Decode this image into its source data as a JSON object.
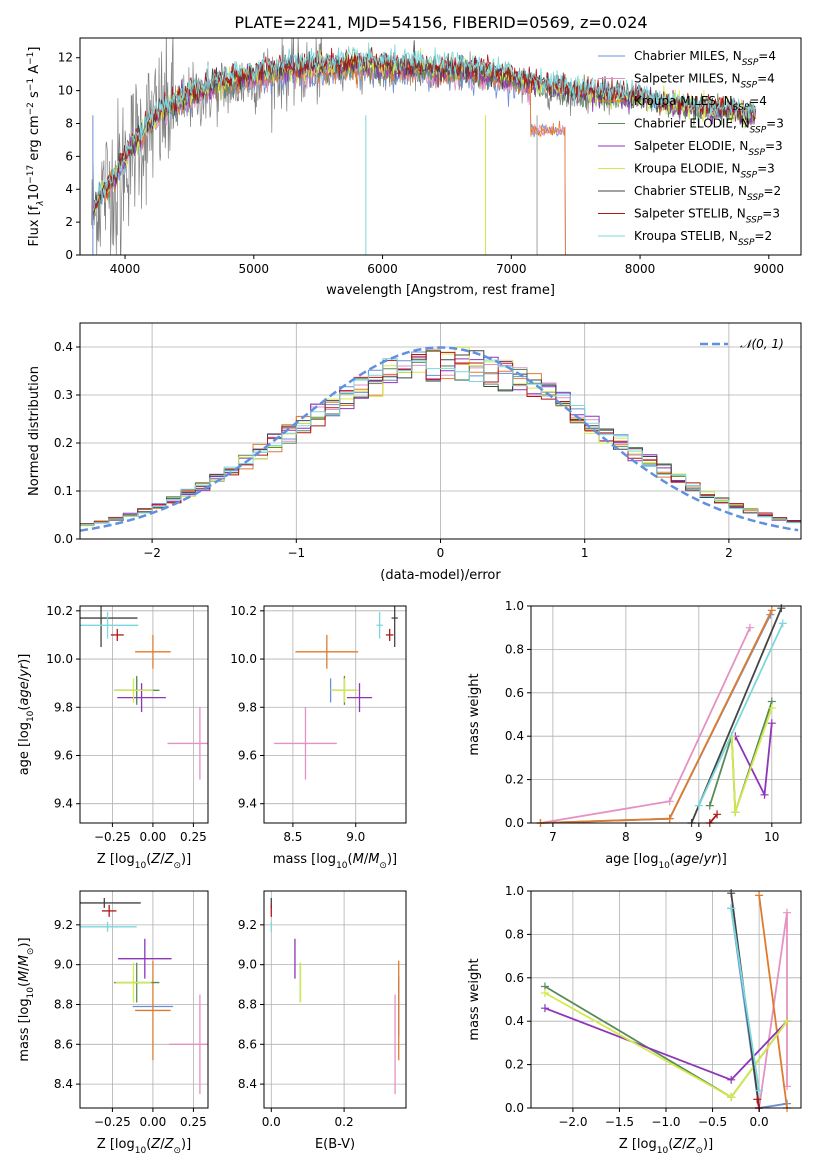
{
  "figure_title": "PLATE=2241, MJD=54156, FIBERID=0569, z=0.024",
  "series_colors": {
    "Chabrier MILES": "#6b8fd6",
    "Salpeter MILES": "#e592c2",
    "Kroupa MILES": "#e07b2c",
    "Chabrier ELODIE": "#5a8a5a",
    "Salpeter ELODIE": "#8e35b8",
    "Kroupa ELODIE": "#d4e94a",
    "Chabrier STELIB": "#444444",
    "Salpeter STELIB": "#b01818",
    "Kroupa STELIB": "#7ad8dc",
    "data": "#808080",
    "normal_curve": "#6090e0"
  },
  "chart_data": [
    {
      "id": "spectrum",
      "type": "line",
      "title": "PLATE=2241, MJD=54156, FIBERID=0569, z=0.024",
      "xlabel": "wavelength [Angstrom, rest frame]",
      "ylabel": "Flux [f_λ 10^-17 erg cm^-2 s^-1 A^-1]",
      "xlim": [
        3650,
        9250
      ],
      "ylim": [
        0,
        13.2
      ],
      "xticks": [
        4000,
        5000,
        6000,
        7000,
        8000,
        9000
      ],
      "yticks": [
        0,
        2,
        4,
        6,
        8,
        10,
        12
      ],
      "grid": false,
      "legend_position": "top-right",
      "legend": [
        "Chabrier MILES, N_SSP=4",
        "Salpeter MILES, N_SSP=4",
        "Kroupa MILES, N_SSP=4",
        "Chabrier ELODIE, N_SSP=3",
        "Salpeter ELODIE, N_SSP=3",
        "Kroupa ELODIE, N_SSP=3",
        "Chabrier STELIB, N_SSP=2",
        "Salpeter STELIB, N_SSP=3",
        "Kroupa STELIB, N_SSP=2"
      ],
      "continuum": {
        "x": [
          3750,
          3800,
          3900,
          4000,
          4100,
          4200,
          4300,
          4500,
          4800,
          5000,
          5200,
          5500,
          5800,
          6000,
          6300,
          6500,
          6700,
          6900,
          7000,
          7100,
          7200,
          7400,
          7600,
          7800,
          8000,
          8200,
          8400,
          8600,
          8800,
          9000,
          9200
        ],
        "y": [
          2.5,
          3.5,
          4.5,
          5.8,
          7.0,
          7.9,
          8.6,
          9.5,
          10.3,
          10.7,
          11.0,
          11.2,
          11.3,
          11.2,
          11.1,
          11.0,
          10.9,
          10.7,
          10.5,
          10.4,
          10.1,
          9.8,
          9.6,
          9.5,
          9.3,
          9.0,
          8.7,
          8.6,
          8.4,
          8.2,
          8.1
        ]
      },
      "miles_cut_above_A": 7150,
      "miles_red_level": 7.6,
      "miles_cut_A": 7420
    },
    {
      "id": "residuals",
      "type": "bar",
      "xlabel": "(data-model)/error",
      "ylabel": "Normed distribution",
      "xlim": [
        -2.5,
        2.5
      ],
      "ylim": [
        0,
        0.45
      ],
      "xticks": [
        -2,
        -1,
        0,
        1,
        2
      ],
      "yticks": [
        0,
        0.1,
        0.2,
        0.3,
        0.4
      ],
      "grid": true,
      "legend_position": "top-right",
      "legend": [
        "𝒩(0, 1)"
      ],
      "bin_width": 0.1,
      "x_range": [
        -2.5,
        2.5
      ],
      "normal": {
        "mu": 0,
        "sigma": 1
      }
    },
    {
      "id": "age_vs_Z",
      "type": "scatter",
      "xlabel": "Z [log10(Z/Z⊙)]",
      "ylabel": "age [log10(age/yr)]",
      "xlim": [
        -0.45,
        0.34
      ],
      "ylim": [
        9.32,
        10.22
      ],
      "xticks": [
        -0.25,
        0.0,
        0.25
      ],
      "yticks": [
        9.4,
        9.6,
        9.8,
        10.0,
        10.2
      ],
      "grid": true,
      "points": [
        {
          "series": "Chabrier MILES",
          "x": -0.1,
          "y": 9.87,
          "xerr": 0.28,
          "yerr": 0.1
        },
        {
          "series": "Salpeter MILES",
          "x": 0.29,
          "y": 9.65,
          "xerr": 0.4,
          "yerr": 0.3
        },
        {
          "series": "Kroupa MILES",
          "x": 0.0,
          "y": 10.03,
          "xerr": 0.22,
          "yerr": 0.14
        },
        {
          "series": "Chabrier ELODIE",
          "x": -0.1,
          "y": 9.87,
          "xerr": 0.28,
          "yerr": 0.12
        },
        {
          "series": "Salpeter ELODIE",
          "x": -0.07,
          "y": 9.84,
          "xerr": 0.3,
          "yerr": 0.12
        },
        {
          "series": "Kroupa ELODIE",
          "x": -0.12,
          "y": 9.87,
          "xerr": 0.24,
          "yerr": 0.1
        },
        {
          "series": "Chabrier STELIB",
          "x": -0.32,
          "y": 10.17,
          "xerr": 0.45,
          "yerr": 0.24
        },
        {
          "series": "Salpeter STELIB",
          "x": -0.22,
          "y": 10.1,
          "xerr": 0.08,
          "yerr": 0.05
        },
        {
          "series": "Kroupa STELIB",
          "x": -0.28,
          "y": 10.14,
          "xerr": 0.38,
          "yerr": 0.11
        }
      ]
    },
    {
      "id": "age_vs_mass",
      "type": "scatter",
      "xlabel": "mass [log10(M/M⊙)]",
      "ylabel": "",
      "xlim": [
        8.27,
        9.4
      ],
      "ylim": [
        9.32,
        10.22
      ],
      "xticks": [
        8.5,
        9.0
      ],
      "yticks": [
        9.4,
        9.6,
        9.8,
        10.0,
        10.2
      ],
      "grid": true,
      "points": [
        {
          "series": "Chabrier MILES",
          "x": 8.8,
          "y": 9.87,
          "xerr": 0.0,
          "yerr": 0.1
        },
        {
          "series": "Salpeter MILES",
          "x": 8.6,
          "y": 9.65,
          "xerr": 0.5,
          "yerr": 0.3
        },
        {
          "series": "Kroupa MILES",
          "x": 8.77,
          "y": 10.03,
          "xerr": 0.5,
          "yerr": 0.14
        },
        {
          "series": "Chabrier ELODIE",
          "x": 8.91,
          "y": 9.87,
          "xerr": 0.2,
          "yerr": 0.12
        },
        {
          "series": "Salpeter ELODIE",
          "x": 9.03,
          "y": 9.84,
          "xerr": 0.2,
          "yerr": 0.12
        },
        {
          "series": "Kroupa ELODIE",
          "x": 8.91,
          "y": 9.87,
          "xerr": 0.22,
          "yerr": 0.1
        },
        {
          "series": "Chabrier STELIB",
          "x": 9.31,
          "y": 10.17,
          "xerr": 0.05,
          "yerr": 0.24
        },
        {
          "series": "Salpeter STELIB",
          "x": 9.27,
          "y": 10.1,
          "xerr": 0.06,
          "yerr": 0.05
        },
        {
          "series": "Kroupa STELIB",
          "x": 9.19,
          "y": 10.14,
          "xerr": 0.05,
          "yerr": 0.11
        }
      ]
    },
    {
      "id": "weight_vs_age",
      "type": "line",
      "xlabel": "age [log10(age/yr)]",
      "ylabel": "mass weight",
      "xlim": [
        6.7,
        10.4
      ],
      "ylim": [
        0,
        1
      ],
      "xticks": [
        7,
        8,
        9,
        10
      ],
      "yticks": [
        0.0,
        0.2,
        0.4,
        0.6,
        0.8,
        1.0
      ],
      "grid": true,
      "series": [
        {
          "name": "Chabrier MILES",
          "x": [
            6.83,
            8.6,
            9.98
          ],
          "y": [
            0.0,
            0.02,
            0.96
          ]
        },
        {
          "name": "Salpeter MILES",
          "x": [
            6.83,
            8.6,
            9.7
          ],
          "y": [
            0.0,
            0.1,
            0.9
          ]
        },
        {
          "name": "Kroupa MILES",
          "x": [
            6.83,
            8.6,
            10.0
          ],
          "y": [
            0.0,
            0.02,
            0.98
          ]
        },
        {
          "name": "Chabrier ELODIE",
          "x": [
            9.15,
            9.45,
            9.5,
            10.0
          ],
          "y": [
            0.08,
            0.4,
            0.05,
            0.56
          ]
        },
        {
          "name": "Salpeter ELODIE",
          "x": [
            9.5,
            9.9,
            10.0
          ],
          "y": [
            0.4,
            0.13,
            0.46
          ]
        },
        {
          "name": "Kroupa ELODIE",
          "x": [
            9.45,
            9.5,
            10.0
          ],
          "y": [
            0.4,
            0.05,
            0.53
          ]
        },
        {
          "name": "Chabrier STELIB",
          "x": [
            8.9,
            10.13
          ],
          "y": [
            0.0,
            0.99
          ]
        },
        {
          "name": "Salpeter STELIB",
          "x": [
            9.15,
            9.25
          ],
          "y": [
            0.0,
            0.04
          ]
        },
        {
          "name": "Kroupa STELIB",
          "x": [
            9.0,
            10.15
          ],
          "y": [
            0.08,
            0.92
          ]
        }
      ]
    },
    {
      "id": "mass_vs_Z",
      "type": "scatter",
      "xlabel": "Z [log10(Z/Z⊙)]",
      "ylabel": "mass [log10(M/M⊙)]",
      "xlim": [
        -0.45,
        0.34
      ],
      "ylim": [
        8.28,
        9.37
      ],
      "xticks": [
        -0.25,
        0.0,
        0.25
      ],
      "yticks": [
        8.4,
        8.6,
        8.8,
        9.0,
        9.2
      ],
      "grid": true,
      "points": [
        {
          "series": "Chabrier MILES",
          "x": 0.0,
          "y": 8.79,
          "xerr": 0.25,
          "yerr": 0.0
        },
        {
          "series": "Salpeter MILES",
          "x": 0.29,
          "y": 8.6,
          "xerr": 0.38,
          "yerr": 0.5
        },
        {
          "series": "Kroupa MILES",
          "x": 0.0,
          "y": 8.77,
          "xerr": 0.22,
          "yerr": 0.5
        },
        {
          "series": "Chabrier ELODIE",
          "x": -0.1,
          "y": 8.91,
          "xerr": 0.28,
          "yerr": 0.2
        },
        {
          "series": "Salpeter ELODIE",
          "x": -0.05,
          "y": 9.03,
          "xerr": 0.33,
          "yerr": 0.2
        },
        {
          "series": "Kroupa ELODIE",
          "x": -0.12,
          "y": 8.91,
          "xerr": 0.22,
          "yerr": 0.2
        },
        {
          "series": "Chabrier STELIB",
          "x": -0.3,
          "y": 9.31,
          "xerr": 0.45,
          "yerr": 0.05
        },
        {
          "series": "Salpeter STELIB",
          "x": -0.27,
          "y": 9.27,
          "xerr": 0.09,
          "yerr": 0.06
        },
        {
          "series": "Kroupa STELIB",
          "x": -0.28,
          "y": 9.19,
          "xerr": 0.36,
          "yerr": 0.05
        }
      ]
    },
    {
      "id": "mass_vs_EBV",
      "type": "scatter",
      "xlabel": "E(B-V)",
      "ylabel": "",
      "xlim": [
        -0.02,
        0.37
      ],
      "ylim": [
        8.28,
        9.37
      ],
      "xticks": [
        0.0,
        0.2
      ],
      "yticks": [
        8.4,
        8.6,
        8.8,
        9.0,
        9.2
      ],
      "grid": true,
      "points": [
        {
          "series": "Chabrier MILES",
          "x": 0.35,
          "y": 8.79,
          "xerr": 0.0,
          "yerr": 0.3
        },
        {
          "series": "Salpeter MILES",
          "x": 0.34,
          "y": 8.6,
          "xerr": 0.0,
          "yerr": 0.5
        },
        {
          "series": "Kroupa MILES",
          "x": 0.35,
          "y": 8.77,
          "xerr": 0.0,
          "yerr": 0.5
        },
        {
          "series": "Chabrier ELODIE",
          "x": 0.08,
          "y": 8.91,
          "xerr": 0.0,
          "yerr": 0.2
        },
        {
          "series": "Salpeter ELODIE",
          "x": 0.065,
          "y": 9.03,
          "xerr": 0.0,
          "yerr": 0.2
        },
        {
          "series": "Kroupa ELODIE",
          "x": 0.08,
          "y": 8.91,
          "xerr": 0.0,
          "yerr": 0.2
        },
        {
          "series": "Chabrier STELIB",
          "x": 0.0,
          "y": 9.31,
          "xerr": 0.0,
          "yerr": 0.05
        },
        {
          "series": "Salpeter STELIB",
          "x": 0.0,
          "y": 9.27,
          "xerr": 0.0,
          "yerr": 0.06
        },
        {
          "series": "Kroupa STELIB",
          "x": 0.0,
          "y": 9.19,
          "xerr": 0.0,
          "yerr": 0.05
        }
      ]
    },
    {
      "id": "weight_vs_Z",
      "type": "line",
      "xlabel": "Z [log10(Z/Z⊙)]",
      "ylabel": "mass weight",
      "xlim": [
        -2.45,
        0.45
      ],
      "ylim": [
        0,
        1
      ],
      "xticks": [
        -2.0,
        -1.5,
        -1.0,
        -0.5,
        0.0
      ],
      "yticks": [
        0.0,
        0.2,
        0.4,
        0.6,
        0.8,
        1.0
      ],
      "grid": true,
      "series": [
        {
          "name": "Chabrier MILES",
          "x": [
            -0.3,
            0.0,
            0.3
          ],
          "y": [
            0.92,
            0.0,
            0.02
          ]
        },
        {
          "name": "Salpeter MILES",
          "x": [
            0.0,
            0.3,
            0.3
          ],
          "y": [
            0.0,
            0.9,
            0.1
          ]
        },
        {
          "name": "Kroupa MILES",
          "x": [
            0.0,
            0.3
          ],
          "y": [
            0.98,
            0.0
          ]
        },
        {
          "name": "Chabrier ELODIE",
          "x": [
            -2.3,
            -0.3,
            0.3
          ],
          "y": [
            0.56,
            0.05,
            0.4
          ]
        },
        {
          "name": "Salpeter ELODIE",
          "x": [
            -2.3,
            -0.3,
            0.3
          ],
          "y": [
            0.46,
            0.13,
            0.4
          ]
        },
        {
          "name": "Kroupa ELODIE",
          "x": [
            -2.3,
            -0.3,
            0.3
          ],
          "y": [
            0.53,
            0.05,
            0.4
          ]
        },
        {
          "name": "Chabrier STELIB",
          "x": [
            -0.3,
            0.0
          ],
          "y": [
            0.99,
            0.0
          ]
        },
        {
          "name": "Salpeter STELIB",
          "x": [
            -0.02,
            0.0
          ],
          "y": [
            0.04,
            0.0
          ]
        },
        {
          "name": "Kroupa STELIB",
          "x": [
            -0.3,
            0.0
          ],
          "y": [
            0.92,
            0.08
          ]
        }
      ]
    }
  ]
}
